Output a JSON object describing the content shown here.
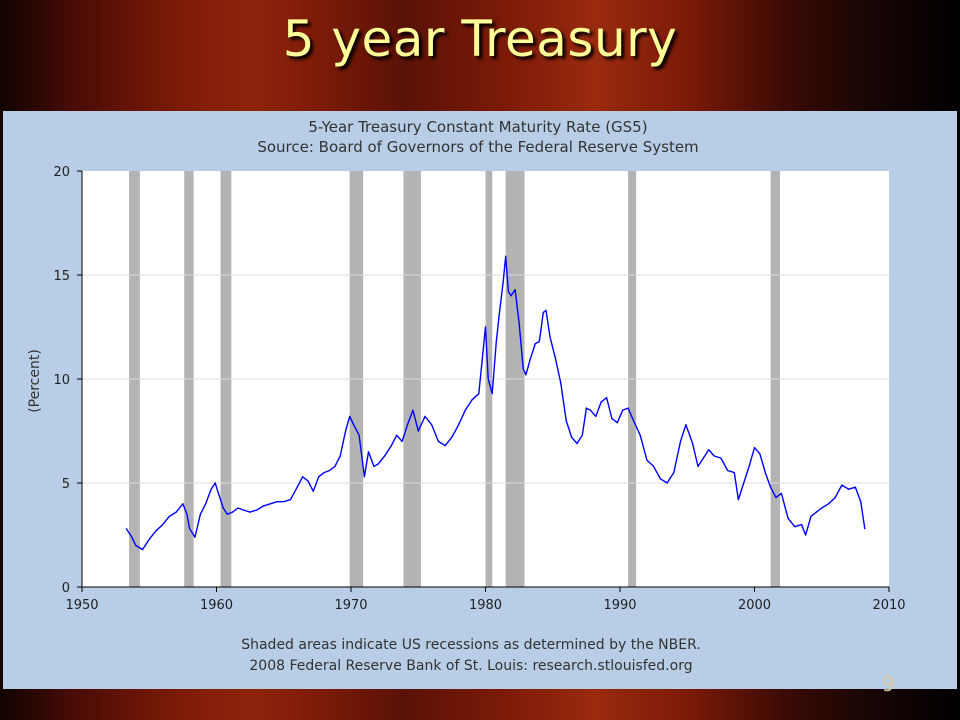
{
  "slide": {
    "title": "5 year Treasury",
    "page_number": "9"
  },
  "chart_data": {
    "type": "line",
    "title": "5-Year Treasury Constant Maturity Rate (GS5)",
    "subtitle": "Source: Board of Governors of the Federal Reserve System",
    "xlabel": "",
    "ylabel": "(Percent)",
    "xlim": [
      1950,
      2010
    ],
    "ylim": [
      0,
      20
    ],
    "x_ticks": [
      "1950",
      "1960",
      "1970",
      "1980",
      "1990",
      "2000",
      "2010"
    ],
    "y_ticks": [
      "0",
      "5",
      "10",
      "15",
      "20"
    ],
    "grid": true,
    "line_color": "#0000ff",
    "recession_color": "#b3b3b3",
    "recessions": [
      [
        1953.5,
        1954.3
      ],
      [
        1957.6,
        1958.3
      ],
      [
        1960.3,
        1961.1
      ],
      [
        1969.9,
        1970.9
      ],
      [
        1973.9,
        1975.2
      ],
      [
        1980.0,
        1980.5
      ],
      [
        1981.5,
        1982.9
      ],
      [
        1990.6,
        1991.2
      ],
      [
        2001.2,
        2001.9
      ]
    ],
    "footnotes": [
      "Shaded areas indicate US recessions as determined by the NBER.",
      "2008 Federal Reserve Bank of St. Louis: research.stlouisfed.org"
    ],
    "series": [
      {
        "x": [
          1953.3,
          1953.7,
          1954.0,
          1954.5,
          1955.0,
          1955.5,
          1956.0,
          1956.5,
          1957.0,
          1957.5,
          1957.8,
          1958.0,
          1958.4,
          1958.8,
          1959.2,
          1959.6,
          1959.9,
          1960.1,
          1960.5,
          1960.8,
          1961.2,
          1961.6,
          1962.0,
          1962.5,
          1963.0,
          1963.5,
          1964.0,
          1964.5,
          1965.0,
          1965.5,
          1966.0,
          1966.4,
          1966.8,
          1967.2,
          1967.6,
          1968.0,
          1968.4,
          1968.8,
          1969.2,
          1969.6,
          1969.9,
          1970.2,
          1970.6,
          1971.0,
          1971.3,
          1971.7,
          1972.0,
          1972.5,
          1973.0,
          1973.4,
          1973.8,
          1974.2,
          1974.6,
          1975.0,
          1975.5,
          1976.0,
          1976.5,
          1977.0,
          1977.5,
          1978.0,
          1978.5,
          1979.0,
          1979.5,
          1980.0,
          1980.2,
          1980.5,
          1980.8,
          1981.0,
          1981.3,
          1981.5,
          1981.7,
          1981.9,
          1982.2,
          1982.5,
          1982.8,
          1983.0,
          1983.3,
          1983.7,
          1984.0,
          1984.3,
          1984.5,
          1984.8,
          1985.2,
          1985.6,
          1986.0,
          1986.4,
          1986.8,
          1987.2,
          1987.5,
          1987.8,
          1988.2,
          1988.6,
          1989.0,
          1989.4,
          1989.8,
          1990.2,
          1990.6,
          1991.0,
          1991.5,
          1992.0,
          1992.5,
          1993.0,
          1993.5,
          1994.0,
          1994.5,
          1994.9,
          1995.4,
          1995.8,
          1996.2,
          1996.6,
          1997.0,
          1997.5,
          1998.0,
          1998.5,
          1998.8,
          1999.2,
          1999.6,
          2000.0,
          2000.4,
          2000.8,
          2001.2,
          2001.6,
          2002.0,
          2002.5,
          2003.0,
          2003.5,
          2003.8,
          2004.2,
          2004.6,
          2005.0,
          2005.5,
          2006.0,
          2006.5,
          2007.0,
          2007.5,
          2007.9,
          2008.2
        ],
        "y": [
          2.8,
          2.4,
          2.0,
          1.8,
          2.3,
          2.7,
          3.0,
          3.4,
          3.6,
          4.0,
          3.5,
          2.8,
          2.4,
          3.5,
          4.0,
          4.7,
          5.0,
          4.6,
          3.8,
          3.5,
          3.6,
          3.8,
          3.7,
          3.6,
          3.7,
          3.9,
          4.0,
          4.1,
          4.1,
          4.2,
          4.8,
          5.3,
          5.1,
          4.6,
          5.3,
          5.5,
          5.6,
          5.8,
          6.3,
          7.5,
          8.2,
          7.8,
          7.3,
          5.3,
          6.5,
          5.8,
          5.9,
          6.3,
          6.8,
          7.3,
          7.0,
          7.8,
          8.5,
          7.5,
          8.2,
          7.8,
          7.0,
          6.8,
          7.2,
          7.8,
          8.5,
          9.0,
          9.3,
          12.5,
          10.0,
          9.3,
          11.8,
          13.0,
          14.6,
          15.9,
          14.2,
          14.0,
          14.3,
          12.7,
          10.5,
          10.2,
          10.9,
          11.7,
          11.8,
          13.2,
          13.3,
          12.0,
          11.0,
          9.8,
          8.0,
          7.2,
          6.9,
          7.3,
          8.6,
          8.5,
          8.2,
          8.9,
          9.1,
          8.1,
          7.9,
          8.5,
          8.6,
          8.0,
          7.3,
          6.1,
          5.8,
          5.2,
          5.0,
          5.5,
          7.0,
          7.8,
          6.9,
          5.8,
          6.2,
          6.6,
          6.3,
          6.2,
          5.6,
          5.5,
          4.2,
          5.0,
          5.8,
          6.7,
          6.4,
          5.5,
          4.8,
          4.3,
          4.5,
          3.3,
          2.9,
          3.0,
          2.5,
          3.4,
          3.6,
          3.8,
          4.0,
          4.3,
          4.9,
          4.7,
          4.8,
          4.1,
          2.8
        ]
      }
    ]
  }
}
